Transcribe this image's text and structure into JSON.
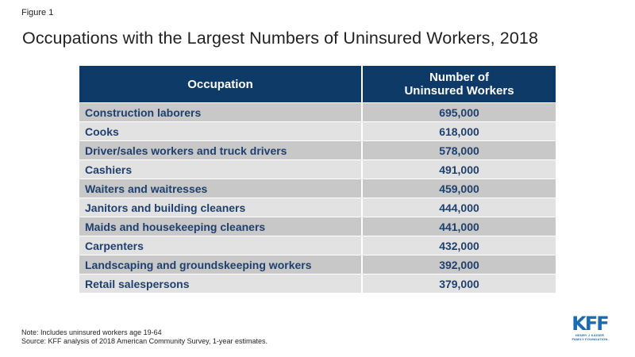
{
  "figure_label": "Figure 1",
  "title": "Occupations with the Largest Numbers of Uninsured Workers, 2018",
  "table": {
    "headers": {
      "occupation": "Occupation",
      "count": "Number of Uninsured Workers"
    },
    "rows": [
      {
        "occupation": "Construction laborers",
        "count": "695,000"
      },
      {
        "occupation": "Cooks",
        "count": "618,000"
      },
      {
        "occupation": "Driver/sales workers and truck drivers",
        "count": "578,000"
      },
      {
        "occupation": "Cashiers",
        "count": "491,000"
      },
      {
        "occupation": "Waiters and waitresses",
        "count": "459,000"
      },
      {
        "occupation": "Janitors and building cleaners",
        "count": "444,000"
      },
      {
        "occupation": "Maids and housekeeping cleaners",
        "count": "441,000"
      },
      {
        "occupation": "Carpenters",
        "count": "432,000"
      },
      {
        "occupation": "Landscaping and groundskeeping workers",
        "count": "392,000"
      },
      {
        "occupation": "Retail salespersons",
        "count": "379,000"
      }
    ]
  },
  "notes": {
    "note": "Note: Includes uninsured workers age 19-64",
    "source": "Source: KFF analysis of 2018 American Community Survey, 1-year estimates."
  },
  "logo": {
    "mark": "KFF",
    "line1": "HENRY J KAISER",
    "line2": "FAMILY FOUNDATION"
  },
  "colors": {
    "header_bg": "#0d3a66",
    "row_text": "#1f3f6e",
    "row_odd": "#c8c8c8",
    "row_even": "#e2e2e2",
    "logo": "#1a6bb4"
  }
}
